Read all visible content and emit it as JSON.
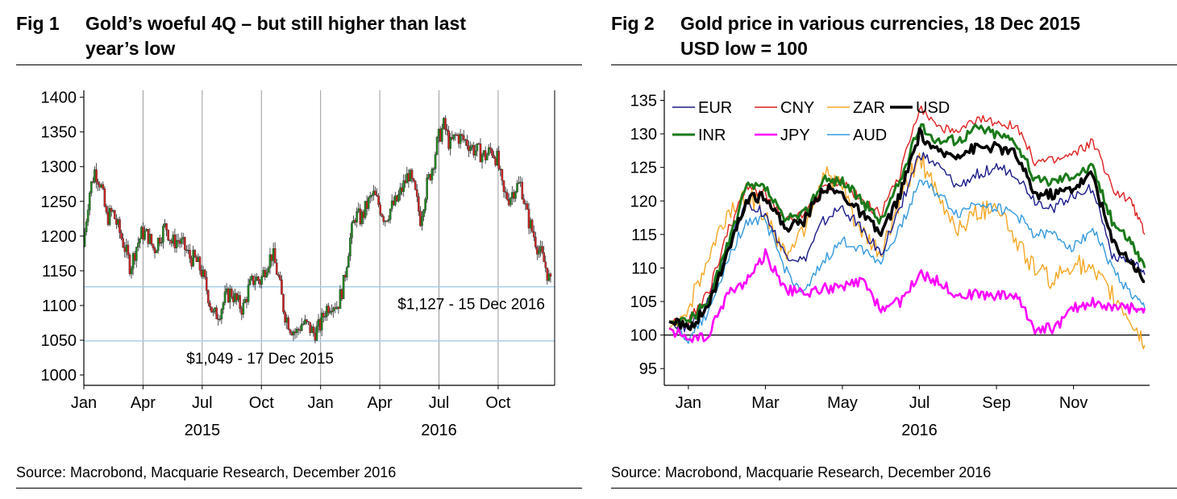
{
  "fig1": {
    "num": "Fig 1",
    "title_line1": "Gold’s woeful 4Q – but still higher than last",
    "title_line2": "year’s low",
    "source": "Source: Macrobond, Macquarie Research, December 2016",
    "chart_data": {
      "type": "candlestick",
      "title": "Gold’s woeful 4Q – but still higher than last year’s low",
      "ylim": [
        985,
        1410
      ],
      "yticks": [
        1000,
        1050,
        1100,
        1150,
        1200,
        1250,
        1300,
        1350,
        1400
      ],
      "xlim": [
        0,
        23.7
      ],
      "xticks": [
        {
          "x": 0,
          "label": "Jan"
        },
        {
          "x": 3,
          "label": "Apr"
        },
        {
          "x": 6,
          "label": "Jul"
        },
        {
          "x": 9,
          "label": "Oct"
        },
        {
          "x": 12,
          "label": "Jan"
        },
        {
          "x": 15,
          "label": "Apr"
        },
        {
          "x": 18,
          "label": "Jul"
        },
        {
          "x": 21,
          "label": "Oct"
        }
      ],
      "year_labels": [
        {
          "x": 6,
          "label": "2015"
        },
        {
          "x": 18,
          "label": "2016"
        }
      ],
      "gridlines_x": [
        3,
        6,
        9,
        12,
        15,
        18,
        21
      ],
      "close_path": [
        [
          0,
          1185
        ],
        [
          0.3,
          1260
        ],
        [
          0.6,
          1295
        ],
        [
          0.9,
          1275
        ],
        [
          1.2,
          1225
        ],
        [
          1.5,
          1235
        ],
        [
          1.8,
          1210
        ],
        [
          2.1,
          1185
        ],
        [
          2.4,
          1155
        ],
        [
          2.7,
          1185
        ],
        [
          3.0,
          1205
        ],
        [
          3.3,
          1200
        ],
        [
          3.6,
          1180
        ],
        [
          3.9,
          1200
        ],
        [
          4.2,
          1215
        ],
        [
          4.5,
          1190
        ],
        [
          4.8,
          1195
        ],
        [
          5.1,
          1185
        ],
        [
          5.4,
          1170
        ],
        [
          5.7,
          1165
        ],
        [
          6.0,
          1150
        ],
        [
          6.3,
          1120
        ],
        [
          6.6,
          1085
        ],
        [
          6.9,
          1090
        ],
        [
          7.2,
          1110
        ],
        [
          7.5,
          1120
        ],
        [
          7.8,
          1105
        ],
        [
          8.1,
          1095
        ],
        [
          8.4,
          1125
        ],
        [
          8.7,
          1140
        ],
        [
          9.0,
          1135
        ],
        [
          9.3,
          1160
        ],
        [
          9.6,
          1175
        ],
        [
          9.9,
          1140
        ],
        [
          10.2,
          1090
        ],
        [
          10.5,
          1070
        ],
        [
          10.8,
          1060
        ],
        [
          11.1,
          1075
        ],
        [
          11.4,
          1070
        ],
        [
          11.7,
          1060
        ],
        [
          12.0,
          1070
        ],
        [
          12.3,
          1095
        ],
        [
          12.6,
          1105
        ],
        [
          12.9,
          1100
        ],
        [
          13.2,
          1130
        ],
        [
          13.5,
          1190
        ],
        [
          13.8,
          1230
        ],
        [
          14.1,
          1225
        ],
        [
          14.4,
          1245
        ],
        [
          14.7,
          1260
        ],
        [
          15.0,
          1245
        ],
        [
          15.3,
          1225
        ],
        [
          15.6,
          1240
        ],
        [
          15.9,
          1250
        ],
        [
          16.2,
          1270
        ],
        [
          16.5,
          1290
        ],
        [
          16.8,
          1265
        ],
        [
          17.1,
          1225
        ],
        [
          17.4,
          1270
        ],
        [
          17.7,
          1300
        ],
        [
          18.0,
          1340
        ],
        [
          18.3,
          1360
        ],
        [
          18.6,
          1330
        ],
        [
          18.9,
          1345
        ],
        [
          19.2,
          1340
        ],
        [
          19.5,
          1335
        ],
        [
          19.8,
          1325
        ],
        [
          20.1,
          1320
        ],
        [
          20.4,
          1315
        ],
        [
          20.7,
          1325
        ],
        [
          21.0,
          1310
        ],
        [
          21.3,
          1260
        ],
        [
          21.6,
          1255
        ],
        [
          21.9,
          1270
        ],
        [
          22.2,
          1275
        ],
        [
          22.5,
          1230
        ],
        [
          22.8,
          1205
        ],
        [
          23.1,
          1180
        ],
        [
          23.4,
          1160
        ],
        [
          23.7,
          1130
        ]
      ],
      "hlines": [
        {
          "y": 1127,
          "label": "$1,127 - 15 Dec 2016"
        },
        {
          "y": 1049,
          "label": "$1,049 - 17 Dec 2015"
        }
      ]
    }
  },
  "fig2": {
    "num": "Fig 2",
    "title_line1": "Gold price in various currencies, 18 Dec 2015",
    "title_line2": "USD low = 100",
    "source": "Source: Macrobond, Macquarie Research, December 2016",
    "chart_data": {
      "type": "line",
      "title": "Gold price in various currencies, 18 Dec 2015 - USD low = 100",
      "ylim": [
        92.5,
        136.5
      ],
      "yticks": [
        95,
        100,
        105,
        110,
        115,
        120,
        125,
        130,
        135
      ],
      "xlim": [
        0,
        12.35
      ],
      "xticks": [
        {
          "x": 0.5,
          "label": "Jan"
        },
        {
          "x": 2.5,
          "label": "Mar"
        },
        {
          "x": 4.5,
          "label": "May"
        },
        {
          "x": 6.5,
          "label": "Jul"
        },
        {
          "x": 8.5,
          "label": "Sep"
        },
        {
          "x": 10.5,
          "label": "Nov"
        }
      ],
      "year_label": {
        "x": 6.5,
        "label": "2016"
      },
      "reference_line": 100,
      "x": [
        0,
        0.5,
        1.0,
        1.5,
        2.0,
        2.5,
        3.0,
        3.5,
        4.0,
        4.5,
        5.0,
        5.5,
        6.0,
        6.5,
        7.0,
        7.5,
        8.0,
        8.5,
        9.0,
        9.5,
        10.0,
        10.5,
        11.0,
        11.5,
        12.0,
        12.35
      ],
      "series": [
        {
          "name": "EUR",
          "color": "#1a1a8c",
          "width": 1.4,
          "values": [
            102,
            101,
            105,
            113,
            120,
            118,
            112,
            111,
            117,
            119,
            116,
            112,
            119,
            127,
            125,
            122,
            124,
            125,
            124,
            120,
            119,
            121,
            122,
            112,
            111,
            109
          ]
        },
        {
          "name": "CNY",
          "color": "#e02020",
          "width": 1.4,
          "values": [
            102,
            102,
            106,
            115,
            122,
            121,
            117,
            118,
            122,
            123,
            120,
            118,
            124,
            134,
            131,
            130,
            132,
            132,
            131,
            126,
            126,
            127,
            129,
            122,
            120,
            115
          ]
        },
        {
          "name": "ZAR",
          "color": "#f5a623",
          "width": 1.4,
          "values": [
            101,
            104,
            111,
            118,
            121,
            118,
            112,
            116,
            124,
            122,
            115,
            112,
            120,
            127,
            120,
            116,
            118,
            120,
            114,
            110,
            108,
            111,
            109,
            106,
            102,
            98.5
          ]
        },
        {
          "name": "USD",
          "color": "#000000",
          "width": 3.6,
          "values": [
            102,
            101,
            104,
            112,
            120,
            121,
            116,
            117,
            122,
            121,
            118,
            115,
            121,
            130,
            127,
            127,
            128,
            128,
            127,
            121,
            121,
            122,
            124,
            114,
            111,
            108
          ]
        },
        {
          "name": "INR",
          "color": "#1a7a1a",
          "width": 3.0,
          "values": [
            102,
            102,
            105,
            113,
            122,
            122,
            117,
            118,
            123,
            123,
            120,
            117,
            123,
            131,
            129,
            129,
            131,
            130,
            129,
            123,
            123,
            124,
            125,
            117,
            114,
            110
          ]
        },
        {
          "name": "JPY",
          "color": "#ff00ff",
          "width": 2.6,
          "values": [
            101,
            99.5,
            99.5,
            106,
            108,
            112,
            107,
            106,
            107,
            107,
            108,
            104,
            105,
            109,
            108,
            106,
            106,
            106,
            106,
            101,
            101,
            104,
            105,
            104,
            104,
            104
          ]
        },
        {
          "name": "AUD",
          "color": "#3399dd",
          "width": 1.4,
          "values": [
            101,
            99.5,
            103,
            111,
            117,
            117,
            110,
            106,
            111,
            114,
            113,
            111,
            116,
            123,
            121,
            118,
            120,
            119,
            118,
            115,
            115,
            113,
            116,
            110,
            106,
            104
          ]
        }
      ],
      "legend": {
        "placement": "top-left",
        "rows": [
          [
            "EUR",
            "CNY",
            "ZAR",
            "USD"
          ],
          [
            "INR",
            "JPY",
            "AUD"
          ]
        ]
      }
    }
  }
}
